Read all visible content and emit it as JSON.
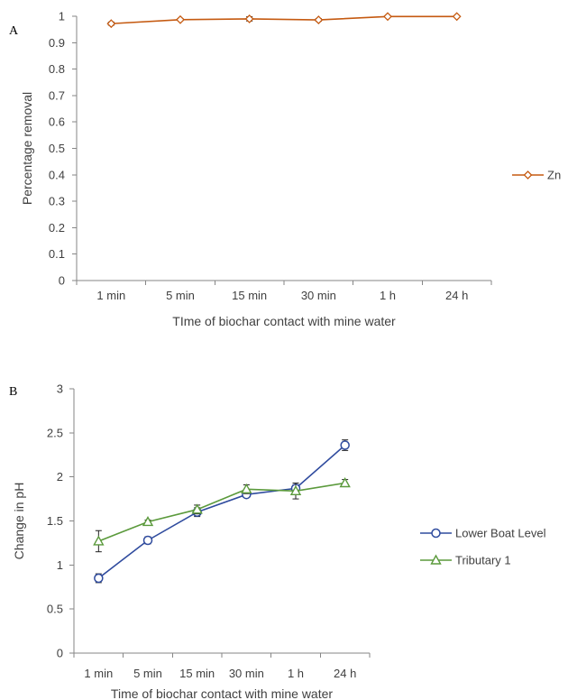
{
  "chart_data": [
    {
      "type": "line",
      "panel_label": "A",
      "categories": [
        "1 min",
        "5 min",
        "15 min",
        "30 min",
        "1 h",
        "24 h"
      ],
      "series": [
        {
          "name": "Zn",
          "color": "#C55A11",
          "marker": "diamond",
          "values": [
            0.972,
            0.987,
            0.99,
            0.986,
            0.999,
            0.999
          ],
          "errors": [
            0.006,
            0.004,
            0.008,
            0.005,
            0.002,
            0.002
          ]
        }
      ],
      "xlabel": "TIme of biochar contact with mine water",
      "ylabel": "Percentage removal",
      "ylim": [
        0,
        1
      ],
      "yticks": [
        "0",
        "0.1",
        "0.2",
        "0.3",
        "0.4",
        "0.5",
        "0.6",
        "0.7",
        "0.8",
        "0.9",
        "1"
      ],
      "grid": false,
      "legend_position": "right"
    },
    {
      "type": "line",
      "panel_label": "B",
      "categories": [
        "1 min",
        "5 min",
        "15 min",
        "30 min",
        "1 h",
        "24 h"
      ],
      "series": [
        {
          "name": "Lower Boat Level",
          "color": "#2F4B9E",
          "marker": "circle",
          "values": [
            0.85,
            1.28,
            1.6,
            1.8,
            1.87,
            2.36
          ],
          "errors": [
            0.05,
            0.04,
            0.05,
            0.03,
            0.04,
            0.06
          ]
        },
        {
          "name": "Tributary 1",
          "color": "#5B9A3C",
          "marker": "triangle",
          "values": [
            1.27,
            1.49,
            1.63,
            1.86,
            1.84,
            1.93
          ],
          "errors": [
            0.12,
            0.02,
            0.05,
            0.05,
            0.09,
            0.04
          ]
        }
      ],
      "xlabel": "Time of biochar contact with mine water",
      "ylabel": "Change in pH",
      "ylim": [
        0,
        3
      ],
      "yticks": [
        "0",
        "0.5",
        "1",
        "1.5",
        "2",
        "2.5",
        "3"
      ],
      "grid": false,
      "legend_position": "right"
    }
  ]
}
